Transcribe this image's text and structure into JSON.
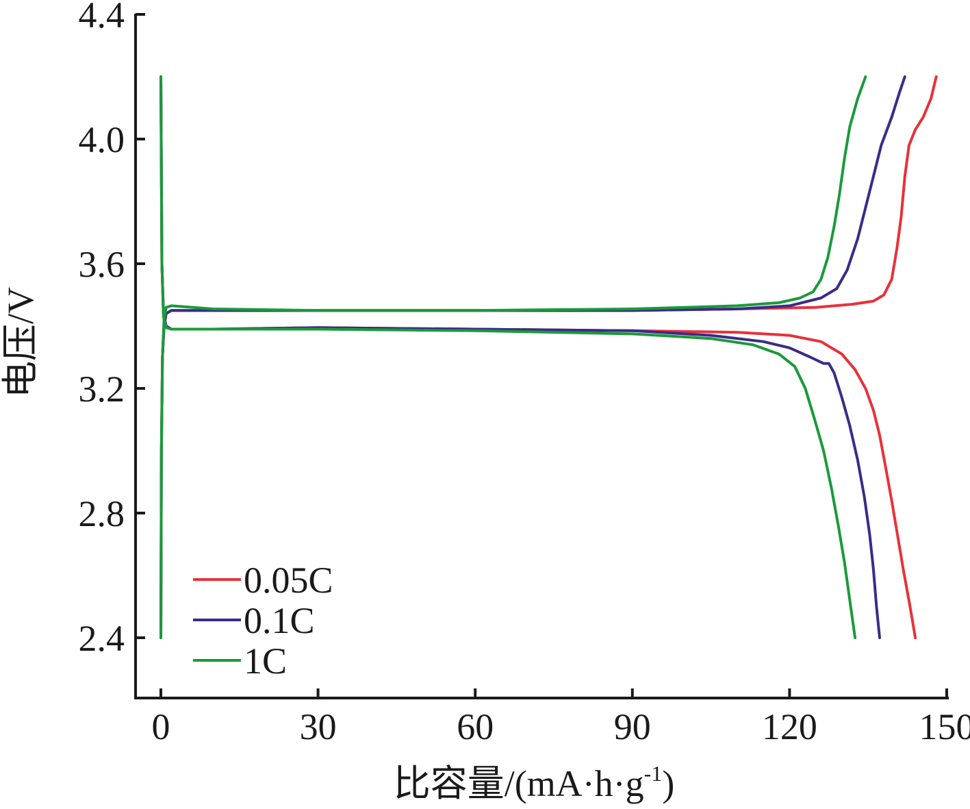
{
  "chart_data": {
    "type": "line",
    "xlabel": "比容量/(mA·h·g-1)",
    "xlabel_parts": {
      "main": "比容量/(mA·h·g",
      "sup": "-1",
      "close": ")"
    },
    "ylabel": "电压/V",
    "xlim": [
      -5,
      150
    ],
    "ylim": [
      2.2,
      4.4
    ],
    "xticks": [
      0,
      30,
      60,
      90,
      120,
      150
    ],
    "xtick_labels": [
      "0",
      "30",
      "60",
      "90",
      "120",
      "150"
    ],
    "yticks": [
      2.4,
      2.8,
      3.2,
      3.6,
      4.0,
      4.4
    ],
    "ytick_labels": [
      "2.4",
      "2.8",
      "3.2",
      "3.6",
      "4.0",
      "4.4"
    ],
    "grid": false,
    "legend_position": "bottom-left",
    "series": [
      {
        "name": "0.05C",
        "color": "#e8313a",
        "charge": [
          [
            0.0,
            2.4
          ],
          [
            0.1,
            3.0
          ],
          [
            0.3,
            3.3
          ],
          [
            0.6,
            3.4
          ],
          [
            1.0,
            3.44
          ],
          [
            2,
            3.45
          ],
          [
            10,
            3.45
          ],
          [
            30,
            3.45
          ],
          [
            60,
            3.45
          ],
          [
            90,
            3.45
          ],
          [
            110,
            3.455
          ],
          [
            125,
            3.46
          ],
          [
            132,
            3.47
          ],
          [
            136,
            3.48
          ],
          [
            138,
            3.5
          ],
          [
            139.5,
            3.55
          ],
          [
            140.5,
            3.65
          ],
          [
            141.3,
            3.75
          ],
          [
            142,
            3.88
          ],
          [
            142.8,
            3.98
          ],
          [
            144,
            4.03
          ],
          [
            145.5,
            4.07
          ],
          [
            147,
            4.13
          ],
          [
            148,
            4.2
          ]
        ],
        "discharge": [
          [
            0.0,
            4.2
          ],
          [
            0.2,
            3.6
          ],
          [
            0.5,
            3.44
          ],
          [
            1.0,
            3.4
          ],
          [
            2,
            3.39
          ],
          [
            10,
            3.39
          ],
          [
            30,
            3.395
          ],
          [
            60,
            3.39
          ],
          [
            90,
            3.385
          ],
          [
            110,
            3.38
          ],
          [
            120,
            3.37
          ],
          [
            126,
            3.35
          ],
          [
            130,
            3.31
          ],
          [
            132.5,
            3.26
          ],
          [
            134.5,
            3.2
          ],
          [
            136,
            3.13
          ],
          [
            137.2,
            3.05
          ],
          [
            138.3,
            2.95
          ],
          [
            139.5,
            2.84
          ],
          [
            140.5,
            2.74
          ],
          [
            141.7,
            2.62
          ],
          [
            143,
            2.5
          ],
          [
            144,
            2.4
          ]
        ]
      },
      {
        "name": "0.1C",
        "color": "#3a2b8a",
        "charge": [
          [
            0.0,
            2.4
          ],
          [
            0.1,
            3.0
          ],
          [
            0.3,
            3.3
          ],
          [
            0.6,
            3.4
          ],
          [
            1.0,
            3.44
          ],
          [
            2,
            3.45
          ],
          [
            10,
            3.45
          ],
          [
            30,
            3.45
          ],
          [
            60,
            3.45
          ],
          [
            90,
            3.45
          ],
          [
            110,
            3.455
          ],
          [
            120,
            3.465
          ],
          [
            126,
            3.49
          ],
          [
            129,
            3.52
          ],
          [
            131,
            3.58
          ],
          [
            133,
            3.68
          ],
          [
            134.5,
            3.78
          ],
          [
            136,
            3.88
          ],
          [
            137.5,
            3.98
          ],
          [
            139.5,
            4.07
          ],
          [
            141,
            4.15
          ],
          [
            142,
            4.2
          ]
        ],
        "discharge": [
          [
            0.0,
            4.2
          ],
          [
            0.2,
            3.6
          ],
          [
            0.5,
            3.44
          ],
          [
            1.0,
            3.4
          ],
          [
            2,
            3.39
          ],
          [
            10,
            3.39
          ],
          [
            30,
            3.395
          ],
          [
            60,
            3.39
          ],
          [
            90,
            3.385
          ],
          [
            105,
            3.37
          ],
          [
            115,
            3.35
          ],
          [
            120,
            3.33
          ],
          [
            124,
            3.3
          ],
          [
            126.5,
            3.28
          ],
          [
            127.5,
            3.28
          ],
          [
            128.5,
            3.25
          ],
          [
            130,
            3.17
          ],
          [
            131.5,
            3.08
          ],
          [
            133,
            2.97
          ],
          [
            134.3,
            2.85
          ],
          [
            135.3,
            2.73
          ],
          [
            136,
            2.62
          ],
          [
            136.6,
            2.5
          ],
          [
            137.2,
            2.4
          ]
        ]
      },
      {
        "name": "1C",
        "color": "#1a9a3a",
        "charge": [
          [
            0.0,
            2.4
          ],
          [
            0.1,
            3.0
          ],
          [
            0.3,
            3.3
          ],
          [
            0.6,
            3.42
          ],
          [
            1.0,
            3.46
          ],
          [
            2,
            3.465
          ],
          [
            10,
            3.455
          ],
          [
            30,
            3.45
          ],
          [
            60,
            3.45
          ],
          [
            90,
            3.455
          ],
          [
            110,
            3.465
          ],
          [
            118,
            3.475
          ],
          [
            122,
            3.49
          ],
          [
            124.5,
            3.51
          ],
          [
            126,
            3.55
          ],
          [
            127.3,
            3.62
          ],
          [
            128.5,
            3.72
          ],
          [
            129.5,
            3.82
          ],
          [
            130.5,
            3.94
          ],
          [
            131.5,
            4.04
          ],
          [
            133,
            4.13
          ],
          [
            134.5,
            4.2
          ]
        ],
        "discharge": [
          [
            0.0,
            4.2
          ],
          [
            0.2,
            3.6
          ],
          [
            0.5,
            3.43
          ],
          [
            1.0,
            3.395
          ],
          [
            2,
            3.39
          ],
          [
            10,
            3.39
          ],
          [
            30,
            3.39
          ],
          [
            60,
            3.385
          ],
          [
            90,
            3.375
          ],
          [
            105,
            3.36
          ],
          [
            113,
            3.34
          ],
          [
            118,
            3.31
          ],
          [
            121,
            3.27
          ],
          [
            123,
            3.2
          ],
          [
            124.8,
            3.1
          ],
          [
            126.5,
            3.0
          ],
          [
            128,
            2.88
          ],
          [
            129.3,
            2.76
          ],
          [
            130.5,
            2.64
          ],
          [
            131.5,
            2.52
          ],
          [
            132.5,
            2.4
          ]
        ]
      }
    ]
  }
}
